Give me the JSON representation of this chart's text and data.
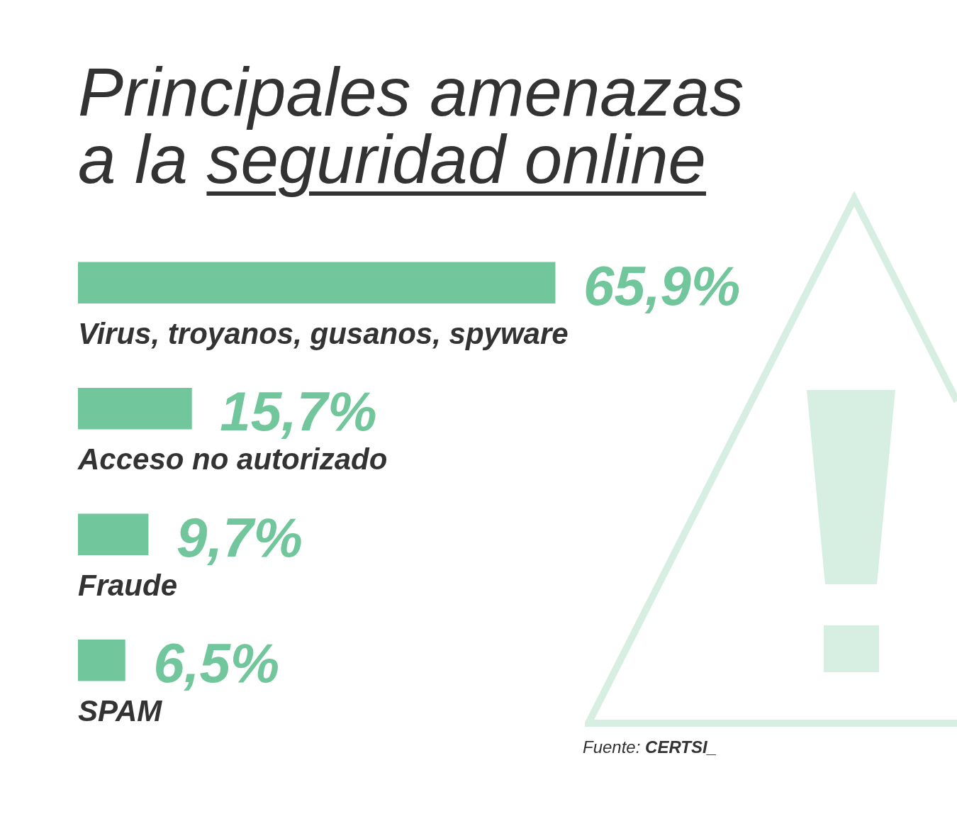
{
  "chart_data": {
    "type": "bar",
    "orientation": "horizontal",
    "title": "Principales amenazas a la seguridad online",
    "categories": [
      "Virus, troyanos, gusanos, spyware",
      "Acceso no autorizado",
      "Fraude",
      "SPAM"
    ],
    "values": [
      65.9,
      15.7,
      9.7,
      6.5
    ],
    "color": "#72c69c",
    "value_labels": [
      "65,9%",
      "15,7%",
      "9,7%",
      "6,5%"
    ],
    "annotations": [
      "Fuente: CERTSI_"
    ]
  }
}
